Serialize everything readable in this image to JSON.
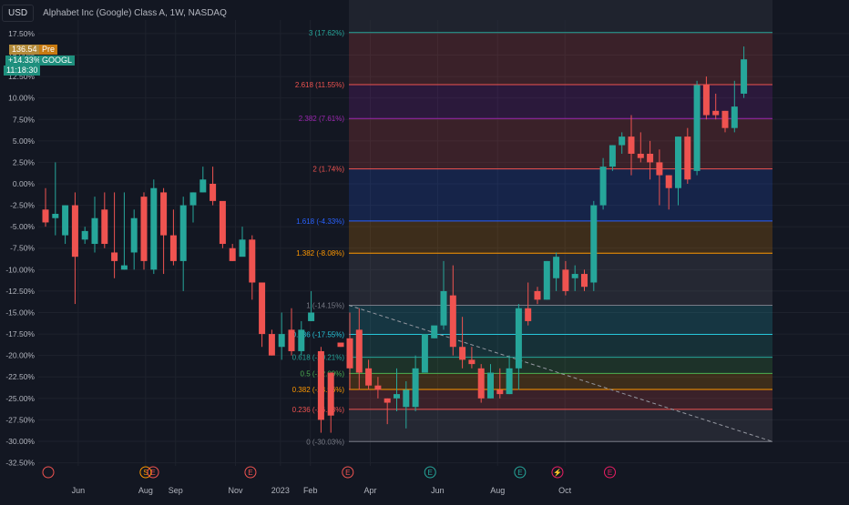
{
  "header": {
    "currency": "USD",
    "title": "Alphabet Inc (Google) Class A, 1W, NASDAQ"
  },
  "badges": {
    "price": "136.54",
    "session": "Pre",
    "change": "+14.33%",
    "ticker": "GOOGL",
    "countdown": "11:18:30"
  },
  "colors": {
    "background": "#131722",
    "up": "#26a69a",
    "down": "#ef5350",
    "grid": "#1e222d",
    "text": "#b2b5be"
  },
  "chart_data": {
    "type": "candlestick",
    "ylabel": "",
    "xlabel": "",
    "ylim": [
      -34,
      19
    ],
    "y_ticks": [
      "17.50%",
      "15.00%",
      "12.50%",
      "10.00%",
      "7.50%",
      "5.00%",
      "2.50%",
      "0.00%",
      "-2.50%",
      "-5.00%",
      "-7.50%",
      "-10.00%",
      "-12.50%",
      "-15.00%",
      "-17.50%",
      "-20.00%",
      "-22.50%",
      "-25.00%",
      "-27.50%",
      "-30.00%",
      "-32.50%"
    ],
    "x_ticks": [
      {
        "label": "Jun",
        "week": 4
      },
      {
        "label": "Aug",
        "week": 13
      },
      {
        "label": "Sep",
        "week": 17
      },
      {
        "label": "Nov",
        "week": 25
      },
      {
        "label": "2023",
        "week": 31
      },
      {
        "label": "Feb",
        "week": 35
      },
      {
        "label": "Apr",
        "week": 43
      },
      {
        "label": "Jun",
        "week": 52
      },
      {
        "label": "Aug",
        "week": 60
      },
      {
        "label": "Oct",
        "week": 69
      }
    ],
    "candles": [
      [
        -3.0,
        -0.5,
        -4.5,
        -5.0
      ],
      [
        -4.0,
        2.5,
        -3.5,
        -6.0
      ],
      [
        -6.0,
        -2.5,
        -2.5,
        -7.0
      ],
      [
        -2.5,
        -1.0,
        -8.5,
        -14.0
      ],
      [
        -6.5,
        -5.0,
        -5.5,
        -7.0
      ],
      [
        -7.0,
        -1.5,
        -4.0,
        -8.0
      ],
      [
        -3.0,
        -1.0,
        -7.0,
        -7.5
      ],
      [
        -8.0,
        -1.0,
        -9.0,
        -11.0
      ],
      [
        -10.0,
        -1.0,
        -9.5,
        -10.0
      ],
      [
        -8.0,
        -3.0,
        -4.0,
        -10.0
      ],
      [
        -1.5,
        -1.0,
        -9.0,
        -10.0
      ],
      [
        -10.0,
        0.5,
        -0.5,
        -10.5
      ],
      [
        -1.0,
        -0.5,
        -6.0,
        -10.5
      ],
      [
        -6.0,
        -3.0,
        -9.0,
        -9.5
      ],
      [
        -9.0,
        -1.5,
        -2.5,
        -12.5
      ],
      [
        -2.5,
        -1.0,
        -1.0,
        -4.5
      ],
      [
        -1.0,
        2.0,
        0.5,
        -1.0
      ],
      [
        0.0,
        2.0,
        -2.0,
        -2.5
      ],
      [
        -2.0,
        -3.0,
        -7.0,
        -7.5
      ],
      [
        -7.5,
        -7.0,
        -9.0,
        -9.0
      ],
      [
        -8.5,
        -5.0,
        -6.5,
        -7.0
      ],
      [
        -6.5,
        -6.0,
        -11.5,
        -13.5
      ],
      [
        -11.5,
        -11.5,
        -17.5,
        -19.0
      ],
      [
        -17.5,
        -17.0,
        -20.0,
        -20.0
      ],
      [
        -19.0,
        -15.0,
        -17.5,
        -20.5
      ],
      [
        -17.0,
        -14.5,
        -19.5,
        -20.0
      ],
      [
        -19.5,
        -16.0,
        -17.0,
        -20.0
      ],
      [
        -16.0,
        -12.5,
        -15.0,
        -16.0
      ],
      [
        -19.5,
        -19.0,
        -27.5,
        -29.0
      ],
      [
        -22.0,
        -22.0,
        -27.0,
        -29.0
      ],
      [
        -18.5,
        -18.5,
        -19.0,
        -19.0
      ]
    ],
    "candles2": [
      [
        -18.0,
        -15.0,
        -21.5,
        -24.0
      ],
      [
        -17.0,
        -14.5,
        -22.0,
        -24.0
      ],
      [
        -21.5,
        -20.5,
        -23.5,
        -24.0
      ],
      [
        -23.5,
        -22.5,
        -24.0,
        -25.0
      ],
      [
        -25.0,
        -25.0,
        -25.5,
        -28.0
      ],
      [
        -25.0,
        -21.5,
        -24.5,
        -26.5
      ],
      [
        -26.0,
        -23.0,
        -24.0,
        -28.5
      ],
      [
        -26.0,
        -20.0,
        -21.5,
        -26.5
      ],
      [
        -22.0,
        -18.0,
        -17.5,
        -22.0
      ],
      [
        -18.0,
        -17.0,
        -16.5,
        -18.0
      ],
      [
        -16.5,
        -9.0,
        -12.5,
        -17.0
      ],
      [
        -13.0,
        -9.5,
        -19.0,
        -20.0
      ],
      [
        -19.0,
        -15.5,
        -20.5,
        -21.5
      ],
      [
        -20.5,
        -19.0,
        -21.0,
        -21.5
      ],
      [
        -21.5,
        -21.0,
        -25.0,
        -25.5
      ],
      [
        -25.0,
        -21.0,
        -22.0,
        -25.0
      ],
      [
        -24.0,
        -21.5,
        -24.5,
        -25.0
      ],
      [
        -24.5,
        -20.0,
        -21.5,
        -24.5
      ],
      [
        -21.5,
        -14.0,
        -14.5,
        -24.0
      ],
      [
        -14.5,
        -11.5,
        -16.0,
        -16.5
      ],
      [
        -12.5,
        -12.0,
        -13.5,
        -14.0
      ],
      [
        -13.5,
        -9.0,
        -9.0,
        -13.5
      ],
      [
        -11.0,
        -8.0,
        -8.5,
        -12.5
      ],
      [
        -10.0,
        -9.0,
        -12.5,
        -13.0
      ],
      [
        -11.0,
        -9.5,
        -10.5,
        -12.5
      ],
      [
        -10.5,
        -10.0,
        -12.0,
        -12.5
      ],
      [
        -11.5,
        -2.0,
        -2.5,
        -12.5
      ],
      [
        -2.5,
        3.0,
        2.0,
        -3.0
      ],
      [
        2.0,
        4.5,
        4.5,
        1.5
      ],
      [
        4.5,
        6.0,
        5.5,
        3.5
      ],
      [
        5.5,
        8.0,
        3.5,
        1.0
      ],
      [
        3.5,
        6.0,
        3.0,
        2.5
      ],
      [
        3.5,
        5.0,
        2.5,
        0.5
      ],
      [
        2.5,
        4.0,
        1.0,
        -2.5
      ],
      [
        1.0,
        1.0,
        -0.5,
        -3.0
      ],
      [
        -0.5,
        5.5,
        5.5,
        -2.5
      ],
      [
        5.5,
        6.5,
        0.5,
        0.0
      ],
      [
        1.5,
        12.0,
        11.5,
        1.0
      ],
      [
        11.5,
        12.5,
        8.0,
        7.5
      ],
      [
        8.5,
        10.5,
        8.0,
        7.5
      ],
      [
        8.5,
        8.5,
        6.5,
        6.0
      ],
      [
        6.5,
        12.0,
        9.0,
        6.0
      ],
      [
        10.5,
        16.0,
        14.5,
        10.0
      ]
    ],
    "fib_levels": [
      {
        "label": "3 (17.62%)",
        "value": 17.62,
        "color": "#26a69a"
      },
      {
        "label": "2.618 (11.55%)",
        "value": 11.55,
        "color": "#ef5350"
      },
      {
        "label": "2.382 (7.61%)",
        "value": 7.61,
        "color": "#9c27b0"
      },
      {
        "label": "2 (1.74%)",
        "value": 1.74,
        "color": "#ef5350"
      },
      {
        "label": "1.618 (-4.33%)",
        "value": -4.33,
        "color": "#2962ff"
      },
      {
        "label": "1.382 (-8.08%)",
        "value": -8.08,
        "color": "#ff9800"
      },
      {
        "label": "1 (-14.15%)",
        "value": -14.15,
        "color": "#787b86"
      },
      {
        "label": "0.786 (-17.55%)",
        "value": -17.55,
        "color": "#26c6da"
      },
      {
        "label": "0.618 (-20.21%)",
        "value": -20.21,
        "color": "#26a69a"
      },
      {
        "label": "0.5 (-22.09%)",
        "value": -22.09,
        "color": "#4caf50"
      },
      {
        "label": "0.382 (-23.96%)",
        "value": -23.96,
        "color": "#ff9800"
      },
      {
        "label": "0.236 (-26.28%)",
        "value": -26.28,
        "color": "#ef5350"
      },
      {
        "label": "0 (-30.03%)",
        "value": -30.03,
        "color": "#787b86"
      }
    ],
    "event_markers": [
      {
        "label": "",
        "kind": "earnings",
        "week": 0,
        "color": "#ef5350"
      },
      {
        "label": "S",
        "kind": "split",
        "week": 13,
        "color": "#ff9800"
      },
      {
        "label": "E",
        "kind": "earnings",
        "week": 14,
        "color": "#ef5350"
      },
      {
        "label": "E",
        "kind": "earnings",
        "week": 27,
        "color": "#ef5350"
      },
      {
        "label": "E",
        "kind": "earnings",
        "week": 40,
        "color": "#ef5350"
      },
      {
        "label": "E",
        "kind": "earnings",
        "week": 51,
        "color": "#26a69a"
      },
      {
        "label": "E",
        "kind": "earnings",
        "week": 63,
        "color": "#26a69a"
      },
      {
        "label": "⚡",
        "kind": "event",
        "week": 68,
        "color": "#e91e63"
      },
      {
        "label": "E",
        "kind": "earnings",
        "week": 75,
        "color": "#e91e63"
      }
    ],
    "grid": true
  }
}
